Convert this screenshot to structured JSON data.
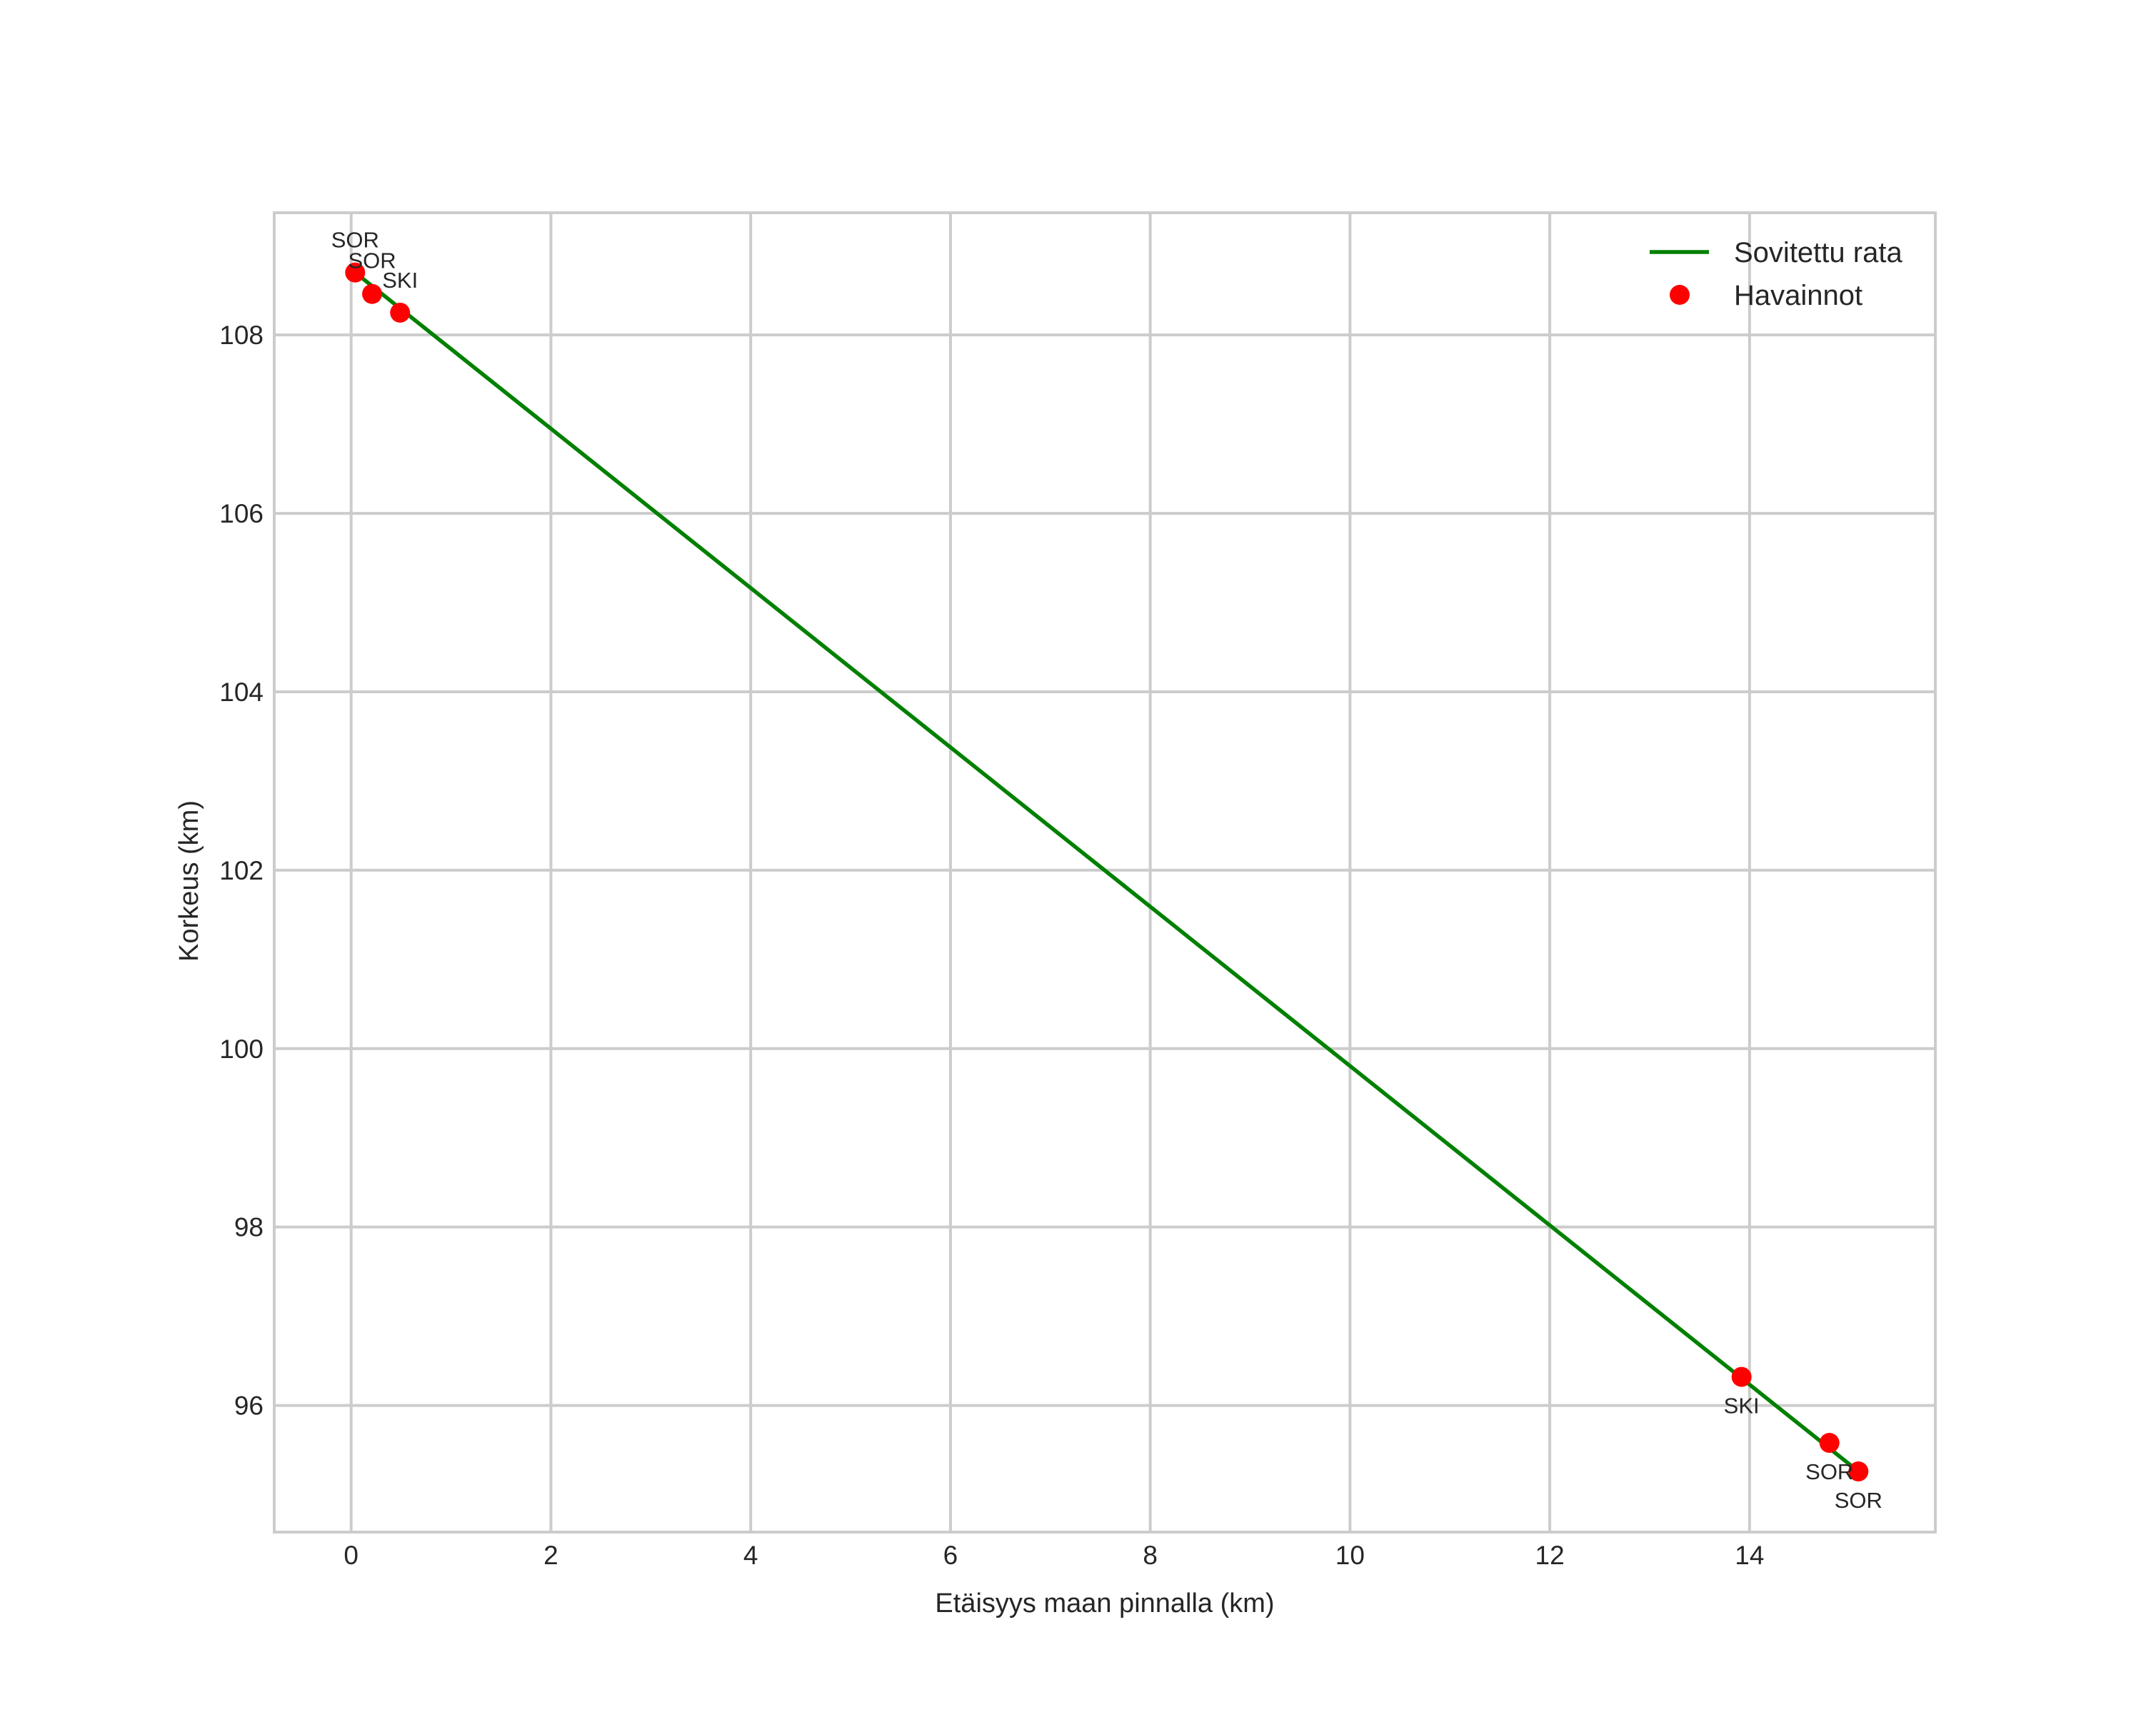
{
  "chart_data": {
    "type": "line",
    "title": "",
    "xlabel": "Etäisyys maan pinnalla (km)",
    "ylabel": "Korkeus (km)",
    "xlim": [
      -0.77,
      15.86
    ],
    "ylim": [
      94.58,
      109.37
    ],
    "xticks": [
      0,
      2,
      4,
      6,
      8,
      10,
      12,
      14
    ],
    "yticks": [
      96,
      98,
      100,
      102,
      104,
      106,
      108
    ],
    "grid": true,
    "legend_position": "upper right",
    "series": [
      {
        "name": "Sovitettu rata",
        "kind": "line",
        "color": "#008000",
        "x": [
          0.04,
          15.09
        ],
        "y": [
          108.7,
          95.26
        ]
      },
      {
        "name": "Havainnot",
        "kind": "scatter",
        "color": "#ff0000",
        "x": [
          0.04,
          0.21,
          0.49,
          13.92,
          14.8,
          15.09
        ],
        "y": [
          108.7,
          108.46,
          108.25,
          96.32,
          95.58,
          95.26
        ],
        "labels": [
          "SOR",
          "SOR",
          "SKI",
          "SKI",
          "SOR",
          "SOR"
        ]
      }
    ],
    "annotations": [
      {
        "text": "SOR",
        "x": 0.04,
        "y": 108.7,
        "position": "above"
      },
      {
        "text": "SOR",
        "x": 0.21,
        "y": 108.46,
        "position": "above"
      },
      {
        "text": "SKI",
        "x": 0.49,
        "y": 108.25,
        "position": "above"
      },
      {
        "text": "SKI",
        "x": 13.92,
        "y": 96.32,
        "position": "below"
      },
      {
        "text": "SOR",
        "x": 14.8,
        "y": 95.58,
        "position": "below"
      },
      {
        "text": "SOR",
        "x": 15.09,
        "y": 95.26,
        "position": "below"
      }
    ]
  },
  "legend": {
    "items": [
      {
        "label": "Sovitettu rata",
        "symbol": "line",
        "color": "#008000"
      },
      {
        "label": "Havainnot",
        "symbol": "dot",
        "color": "#ff0000"
      }
    ]
  },
  "colors": {
    "grid": "#cccccc",
    "frame": "#cccccc",
    "text": "#262626"
  }
}
